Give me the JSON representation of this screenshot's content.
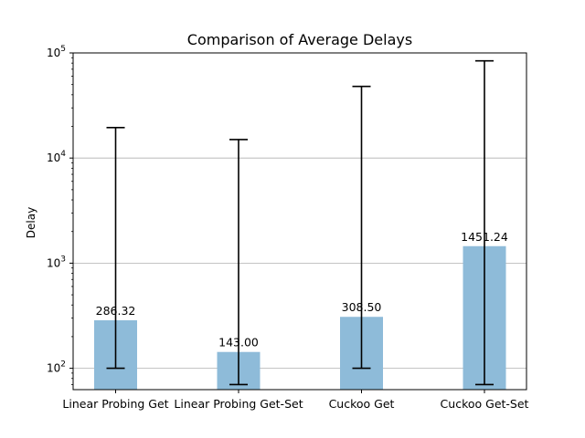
{
  "chart_data": {
    "type": "bar",
    "title": "Comparison of Average Delays",
    "xlabel": "",
    "ylabel": "Delay",
    "yscale": "log",
    "ylim": [
      70,
      120000
    ],
    "grid": "y-major",
    "categories": [
      "Linear Probing Get",
      "Linear Probing Get-Set",
      "Cuckoo Get",
      "Cuckoo Get-Set"
    ],
    "values": [
      286.32,
      143.0,
      308.5,
      1451.24
    ],
    "value_labels": [
      "286.32",
      "143.00",
      "308.50",
      "1451.24"
    ],
    "error_low": [
      100,
      70,
      100,
      70
    ],
    "error_high": [
      19500,
      15000,
      48000,
      84000
    ],
    "yticks": [
      {
        "base": "10",
        "exp": "2",
        "value": 100
      },
      {
        "base": "10",
        "exp": "3",
        "value": 1000
      },
      {
        "base": "10",
        "exp": "4",
        "value": 10000
      },
      {
        "base": "10",
        "exp": "5",
        "value": 100000
      }
    ],
    "bar_color": "#8ebbd9",
    "error_color": "#000000",
    "grid_color": "#b0b0b0"
  }
}
